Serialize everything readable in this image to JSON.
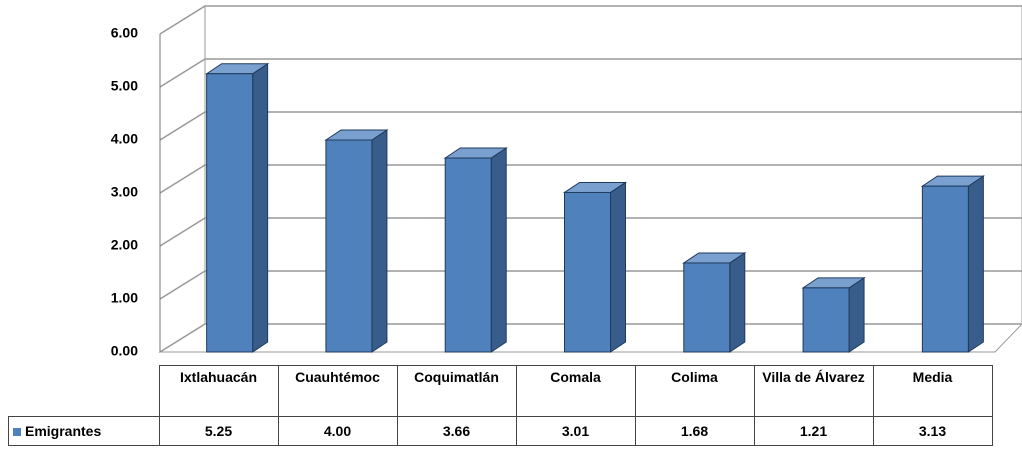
{
  "chart_data": {
    "type": "bar3d",
    "categories": [
      "Ixtlahuacán",
      "Cuauhtémoc",
      "Coquimatlán",
      "Comala",
      "Colima",
      "Villa de Álvarez",
      "Media"
    ],
    "series": [
      {
        "name": "Emigrantes",
        "color": "#4f81bd",
        "values": [
          5.25,
          4.0,
          3.66,
          3.01,
          1.68,
          1.21,
          3.13
        ],
        "value_labels": [
          "5.25",
          "4.00",
          "3.66",
          "3.01",
          "1.68",
          "1.21",
          "3.13"
        ]
      }
    ],
    "ylim": [
      0,
      6
    ],
    "yticks": [
      {
        "value": 0,
        "label": "0.00"
      },
      {
        "value": 1,
        "label": "1.00"
      },
      {
        "value": 2,
        "label": "2.00"
      },
      {
        "value": 3,
        "label": "3.00"
      },
      {
        "value": 4,
        "label": "4.00"
      },
      {
        "value": 5,
        "label": "5.00"
      },
      {
        "value": 6,
        "label": "6.00"
      }
    ],
    "grid": true,
    "legend": "table"
  }
}
